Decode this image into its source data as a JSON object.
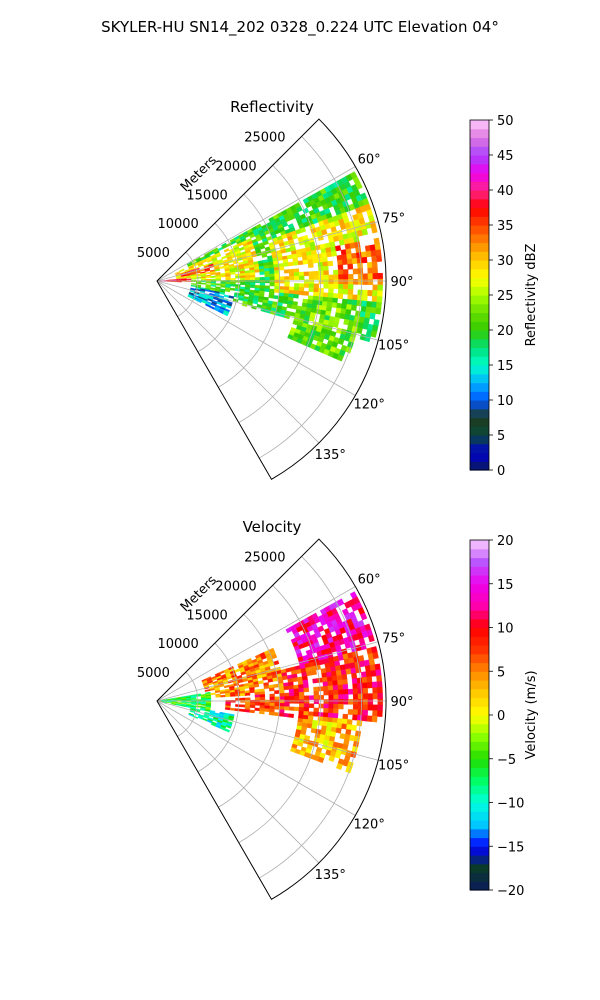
{
  "figure": {
    "title": "SKYLER-HU  SN14_202  0328_0.224 UTC Elevation 04°"
  },
  "chart_data": [
    {
      "type": "heatmap",
      "projection": "polar-sector",
      "title": "Reflectivity",
      "radial_label": "Meters",
      "radial_ticks": [
        5000,
        10000,
        15000,
        20000,
        25000
      ],
      "radial_tick_labels": [
        "5000",
        "10000",
        "15000",
        "20000",
        "25000"
      ],
      "rlim": [
        0,
        28000
      ],
      "angular_range_deg": [
        45,
        150
      ],
      "angular_ticks_deg": [
        60,
        75,
        90,
        105,
        120,
        135
      ],
      "angular_tick_labels": [
        "60°",
        "75°",
        "90°",
        "105°",
        "120°",
        "135°"
      ],
      "grid": true,
      "colorbar": {
        "label": "Reflectivity dBZ",
        "range": [
          0,
          50
        ],
        "ticks": [
          0,
          5,
          10,
          15,
          20,
          25,
          30,
          35,
          40,
          45,
          50
        ],
        "tick_labels": [
          "0",
          "5",
          "10",
          "15",
          "20",
          "25",
          "30",
          "35",
          "40",
          "45",
          "50"
        ],
        "stops": [
          "#0b1b5c",
          "#0000cc",
          "#0a4a3a",
          "#1e3a1e",
          "#0055ff",
          "#00b4ff",
          "#00ffcc",
          "#00e07a",
          "#33cc00",
          "#66dd00",
          "#aaff00",
          "#ffff00",
          "#ffcc00",
          "#ff8800",
          "#ff4400",
          "#ff0000",
          "#ff2288",
          "#ee00ee",
          "#aa44ff",
          "#dd77dd",
          "#ffccff"
        ]
      },
      "echo_regions": [
        {
          "az": [
            60,
            105
          ],
          "r": [
            4000,
            27000
          ],
          "value": 20
        },
        {
          "az": [
            70,
            95
          ],
          "r": [
            14000,
            27000
          ],
          "value": 28
        },
        {
          "az": [
            78,
            90
          ],
          "r": [
            22000,
            27000
          ],
          "value": 34
        },
        {
          "az": [
            65,
            88
          ],
          "r": [
            2000,
            12000
          ],
          "value": 28
        },
        {
          "az": [
            72,
            80
          ],
          "r": [
            3000,
            7000
          ],
          "value": 36
        },
        {
          "az": [
            84,
            92
          ],
          "r": [
            0,
            4000
          ],
          "value": 38
        },
        {
          "az": [
            100,
            115
          ],
          "r": [
            4000,
            9000
          ],
          "value": 12
        },
        {
          "az": [
            95,
            112
          ],
          "r": [
            17000,
            25000
          ],
          "value": 22
        }
      ]
    },
    {
      "type": "heatmap",
      "projection": "polar-sector",
      "title": "Velocity",
      "radial_label": "Meters",
      "radial_ticks": [
        5000,
        10000,
        15000,
        20000,
        25000
      ],
      "radial_tick_labels": [
        "5000",
        "10000",
        "15000",
        "20000",
        "25000"
      ],
      "rlim": [
        0,
        28000
      ],
      "angular_range_deg": [
        45,
        150
      ],
      "angular_ticks_deg": [
        60,
        75,
        90,
        105,
        120,
        135
      ],
      "angular_tick_labels": [
        "60°",
        "75°",
        "90°",
        "105°",
        "120°",
        "135°"
      ],
      "grid": true,
      "colorbar": {
        "label": "Velocity (m/s)",
        "range": [
          -20,
          20
        ],
        "ticks": [
          -20,
          -15,
          -10,
          -5,
          0,
          5,
          10,
          15,
          20
        ],
        "tick_labels": [
          "−20",
          "−15",
          "−10",
          "−5",
          "0",
          "5",
          "10",
          "15",
          "20"
        ],
        "stops": [
          "#0b1b5c",
          "#0a3a2a",
          "#0000ff",
          "#00c8ff",
          "#00ffdd",
          "#00ff66",
          "#22dd00",
          "#88ff00",
          "#ffff00",
          "#ffcc00",
          "#ff8800",
          "#ff3300",
          "#ff0000",
          "#ff00aa",
          "#ee00ee",
          "#bb55ff",
          "#ffccff"
        ]
      },
      "echo_regions": [
        {
          "az": [
            60,
            80
          ],
          "r": [
            18000,
            27000
          ],
          "value": 13
        },
        {
          "az": [
            75,
            95
          ],
          "r": [
            12000,
            27000
          ],
          "value": 9
        },
        {
          "az": [
            65,
            85
          ],
          "r": [
            6000,
            15000
          ],
          "value": 5
        },
        {
          "az": [
            80,
            100
          ],
          "r": [
            0,
            6000
          ],
          "value": -6
        },
        {
          "az": [
            100,
            112
          ],
          "r": [
            4000,
            9000
          ],
          "value": -9
        },
        {
          "az": [
            95,
            110
          ],
          "r": [
            17000,
            25000
          ],
          "value": 3
        },
        {
          "az": [
            88,
            96
          ],
          "r": [
            8000,
            18000
          ],
          "value": 8
        }
      ]
    }
  ]
}
